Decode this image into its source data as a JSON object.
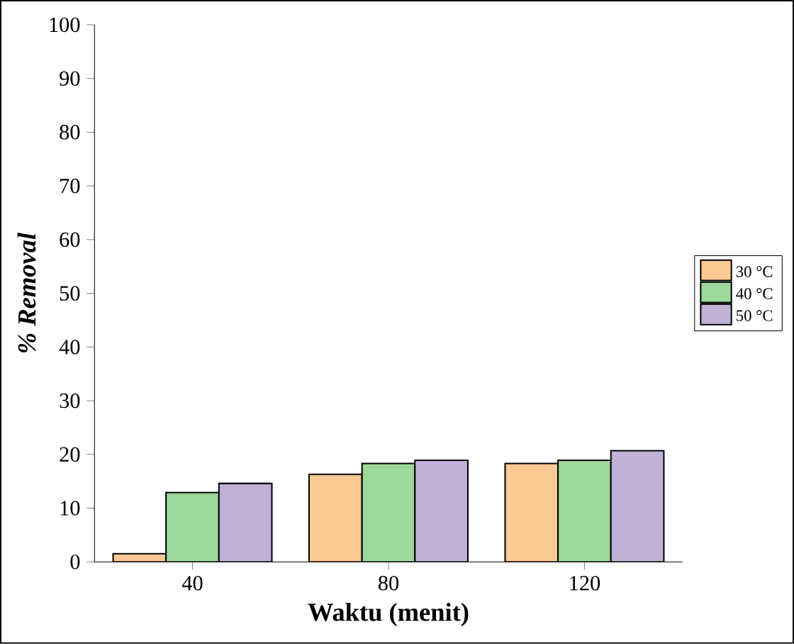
{
  "chart_data": {
    "type": "bar",
    "xlabel": "Waktu (menit)",
    "ylabel": "% Removal",
    "categories": [
      "40",
      "80",
      "120"
    ],
    "series": [
      {
        "name": "30 °C",
        "color": "#fbc994",
        "values": [
          1.5,
          16.3,
          18.3
        ]
      },
      {
        "name": "40 °C",
        "color": "#9dd89b",
        "values": [
          12.9,
          18.3,
          18.9
        ]
      },
      {
        "name": "50 °C",
        "color": "#c1b1d6",
        "values": [
          14.6,
          18.9,
          20.7
        ]
      }
    ],
    "ylim": [
      0,
      100
    ],
    "yticks": [
      0,
      10,
      20,
      30,
      40,
      50,
      60,
      70,
      80,
      90,
      100
    ],
    "grid": false,
    "legend": "right"
  }
}
